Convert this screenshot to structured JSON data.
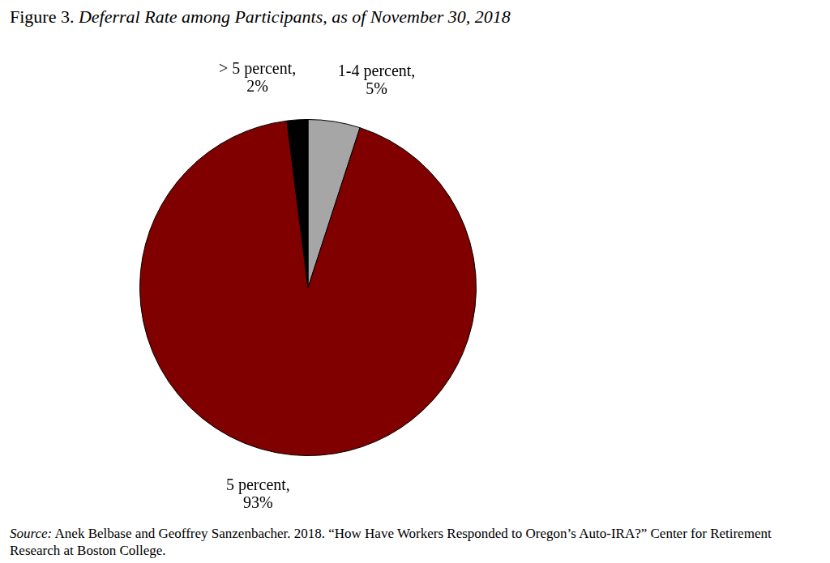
{
  "chart_data": {
    "type": "pie",
    "title": "Figure 3. Deferral Rate among Participants, as of November 30, 2018",
    "categories": [
      "1-4 percent,",
      "5 percent,",
      "> 5 percent,"
    ],
    "values": [
      5,
      93,
      2
    ],
    "value_labels": [
      "5%",
      "93%",
      "2%"
    ],
    "colors": [
      "#a6a6a6",
      "#800000",
      "#000000"
    ],
    "data_labels": true,
    "legend": false,
    "source": "Source: Anek Belbase and Geoffrey Sanzenbacher. 2018. “How Have Workers Responded to Oregon’s Auto-IRA?” Center for Retirement Research at Boston College."
  }
}
